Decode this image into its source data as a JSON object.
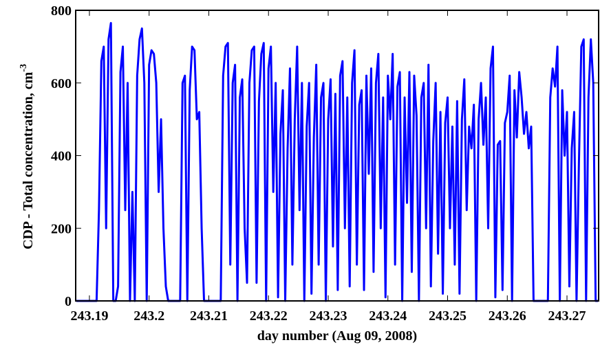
{
  "chart_data": {
    "type": "line",
    "xlabel": "day number (Aug 09, 2008)",
    "ylabel": "CDP - Total concentration, cm",
    "ylabel_superscript": "-3",
    "xlim": [
      243.1877,
      243.2753
    ],
    "ylim": [
      0,
      800
    ],
    "xticks": [
      243.19,
      243.2,
      243.21,
      243.22,
      243.23,
      243.24,
      243.25,
      243.26,
      243.27
    ],
    "yticks": [
      0,
      200,
      400,
      600,
      800
    ],
    "grid": false,
    "x": [
      243.1878,
      243.1912,
      243.1916,
      243.192,
      243.1924,
      243.1928,
      243.1932,
      243.1936,
      243.194,
      243.1944,
      243.1948,
      243.1952,
      243.1956,
      243.196,
      243.1964,
      243.1968,
      243.1972,
      243.1976,
      243.198,
      243.1984,
      243.1988,
      243.1992,
      243.1996,
      243.2,
      243.2004,
      243.2008,
      243.2012,
      243.2016,
      243.202,
      243.2024,
      243.2028,
      243.2032,
      243.2052,
      243.2056,
      243.206,
      243.2064,
      243.2068,
      243.2072,
      243.2076,
      243.208,
      243.2084,
      243.2088,
      243.2092,
      243.212,
      243.2124,
      243.2128,
      243.2132,
      243.2136,
      243.214,
      243.2144,
      243.2148,
      243.2152,
      243.2156,
      243.216,
      243.2164,
      243.2168,
      243.2172,
      243.2176,
      243.218,
      243.2184,
      243.2188,
      243.2192,
      243.2196,
      243.22,
      243.2204,
      243.2208,
      243.2212,
      243.2216,
      243.222,
      243.2224,
      243.2228,
      243.2232,
      243.2236,
      243.224,
      243.2244,
      243.2248,
      243.2252,
      243.2256,
      243.226,
      243.2264,
      243.2268,
      243.2272,
      243.2276,
      243.228,
      243.2284,
      243.2288,
      243.2292,
      243.2296,
      243.23,
      243.2304,
      243.2308,
      243.2312,
      243.2316,
      243.232,
      243.2324,
      243.2328,
      243.2332,
      243.2336,
      243.234,
      243.2344,
      243.2348,
      243.2352,
      243.2356,
      243.236,
      243.2364,
      243.2368,
      243.2372,
      243.2376,
      243.238,
      243.2384,
      243.2388,
      243.2392,
      243.2396,
      243.24,
      243.2404,
      243.2408,
      243.2412,
      243.2416,
      243.242,
      243.2424,
      243.2428,
      243.2432,
      243.2436,
      243.244,
      243.2444,
      243.2448,
      243.2452,
      243.2456,
      243.246,
      243.2464,
      243.2468,
      243.2472,
      243.2476,
      243.248,
      243.2484,
      243.2488,
      243.2492,
      243.2496,
      243.25,
      243.2504,
      243.2508,
      243.2512,
      243.2516,
      243.252,
      243.2524,
      243.2528,
      243.2532,
      243.2536,
      243.254,
      243.2544,
      243.2548,
      243.2552,
      243.2556,
      243.256,
      243.2564,
      243.2568,
      243.2572,
      243.2576,
      243.258,
      243.2584,
      243.2588,
      243.2592,
      243.2596,
      243.26,
      243.2604,
      243.2608,
      243.2612,
      243.2616,
      243.262,
      243.2624,
      243.2628,
      243.2632,
      243.2636,
      243.264,
      243.2644,
      243.2668,
      243.2672,
      243.2676,
      243.268,
      243.2684,
      243.2688,
      243.2692,
      243.2696,
      243.27,
      243.2704,
      243.2708,
      243.2712,
      243.2716,
      243.272,
      243.2724,
      243.2728,
      243.2732,
      243.2736,
      243.274,
      243.2744,
      243.2748,
      243.2752
    ],
    "series": [
      {
        "name": "CDP",
        "color": "#0000ff",
        "values": [
          0,
          0,
          250,
          660,
          700,
          200,
          720,
          765,
          0,
          0,
          40,
          630,
          700,
          250,
          600,
          0,
          300,
          0,
          620,
          720,
          750,
          600,
          0,
          650,
          690,
          680,
          600,
          300,
          500,
          200,
          40,
          0,
          0,
          600,
          620,
          0,
          580,
          700,
          690,
          500,
          520,
          200,
          0,
          0,
          620,
          700,
          710,
          100,
          600,
          650,
          0,
          560,
          610,
          200,
          50,
          600,
          690,
          700,
          50,
          550,
          680,
          710,
          0,
          640,
          700,
          300,
          600,
          10,
          460,
          580,
          0,
          420,
          640,
          100,
          500,
          700,
          250,
          600,
          0,
          480,
          600,
          20,
          450,
          650,
          100,
          560,
          600,
          0,
          500,
          610,
          150,
          570,
          30,
          620,
          660,
          200,
          560,
          40,
          600,
          690,
          100,
          540,
          580,
          30,
          620,
          350,
          640,
          80,
          600,
          680,
          200,
          560,
          10,
          620,
          500,
          680,
          100,
          590,
          630,
          0,
          560,
          270,
          630,
          80,
          620,
          510,
          0,
          560,
          600,
          200,
          650,
          40,
          440,
          600,
          130,
          520,
          20,
          490,
          560,
          200,
          480,
          100,
          550,
          20,
          500,
          610,
          250,
          480,
          420,
          540,
          0,
          500,
          600,
          430,
          560,
          200,
          640,
          700,
          10,
          430,
          440,
          30,
          490,
          520,
          620,
          0,
          580,
          450,
          630,
          560,
          460,
          520,
          420,
          480,
          0,
          0,
          560,
          640,
          590,
          700,
          0,
          580,
          400,
          520,
          40,
          420,
          520,
          0,
          380,
          700,
          720,
          0,
          560,
          720,
          600,
          0,
          0
        ]
      }
    ]
  }
}
